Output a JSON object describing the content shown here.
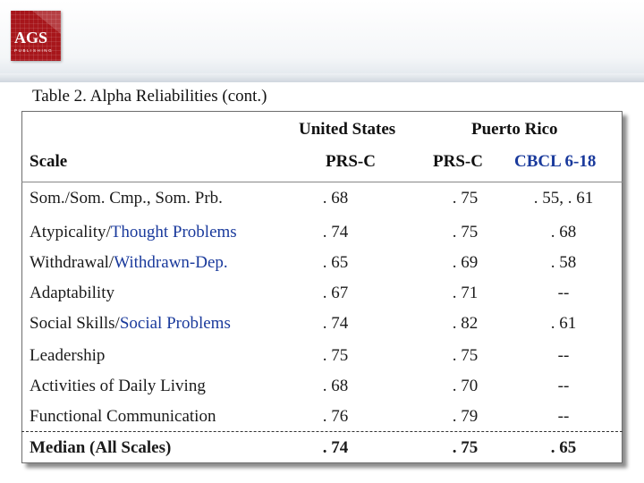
{
  "logo": {
    "text": "AGS",
    "sub": "PUBLISHING"
  },
  "title": "Table 2. Alpha Reliabilities (cont.)",
  "header": {
    "scale": "Scale",
    "us_group": "United States",
    "pr_group": "Puerto Rico",
    "us_sub": "PRS-C",
    "pr_sub1": "PRS-C",
    "pr_sub2": "CBCL 6-18"
  },
  "rows": [
    {
      "label": "Som./Som. Cmp., Som. Prb.",
      "us": ". 68",
      "pr1": ". 75",
      "pr2": ". 55, . 61"
    },
    {
      "label_a": "Atypicality/",
      "label_b": "Thought Problems",
      "us": ". 74",
      "pr1": ". 75",
      "pr2": ". 68"
    },
    {
      "label_a": "Withdrawal/",
      "label_b": "Withdrawn-Dep.",
      "us": ". 65",
      "pr1": ". 69",
      "pr2": ". 58"
    },
    {
      "label": "Adaptability",
      "us": ". 67",
      "pr1": ". 71",
      "pr2": "--"
    },
    {
      "label_a": "Social Skills/",
      "label_b": "Social Problems",
      "us": ". 74",
      "pr1": ". 82",
      "pr2": ". 61"
    },
    {
      "label": "Leadership",
      "us": ". 75",
      "pr1": ". 75",
      "pr2": "--"
    },
    {
      "label": "Activities of Daily Living",
      "us": ". 68",
      "pr1": ". 70",
      "pr2": "--"
    },
    {
      "label": "Functional Communication",
      "us": ". 76",
      "pr1": ". 79",
      "pr2": "--"
    }
  ],
  "median": {
    "label": "Median (All Scales)",
    "us": ". 74",
    "pr1": ". 75",
    "pr2": ". 65"
  },
  "colors": {
    "logo_red": "#a7161b",
    "blue_text": "#1a3a9c"
  }
}
